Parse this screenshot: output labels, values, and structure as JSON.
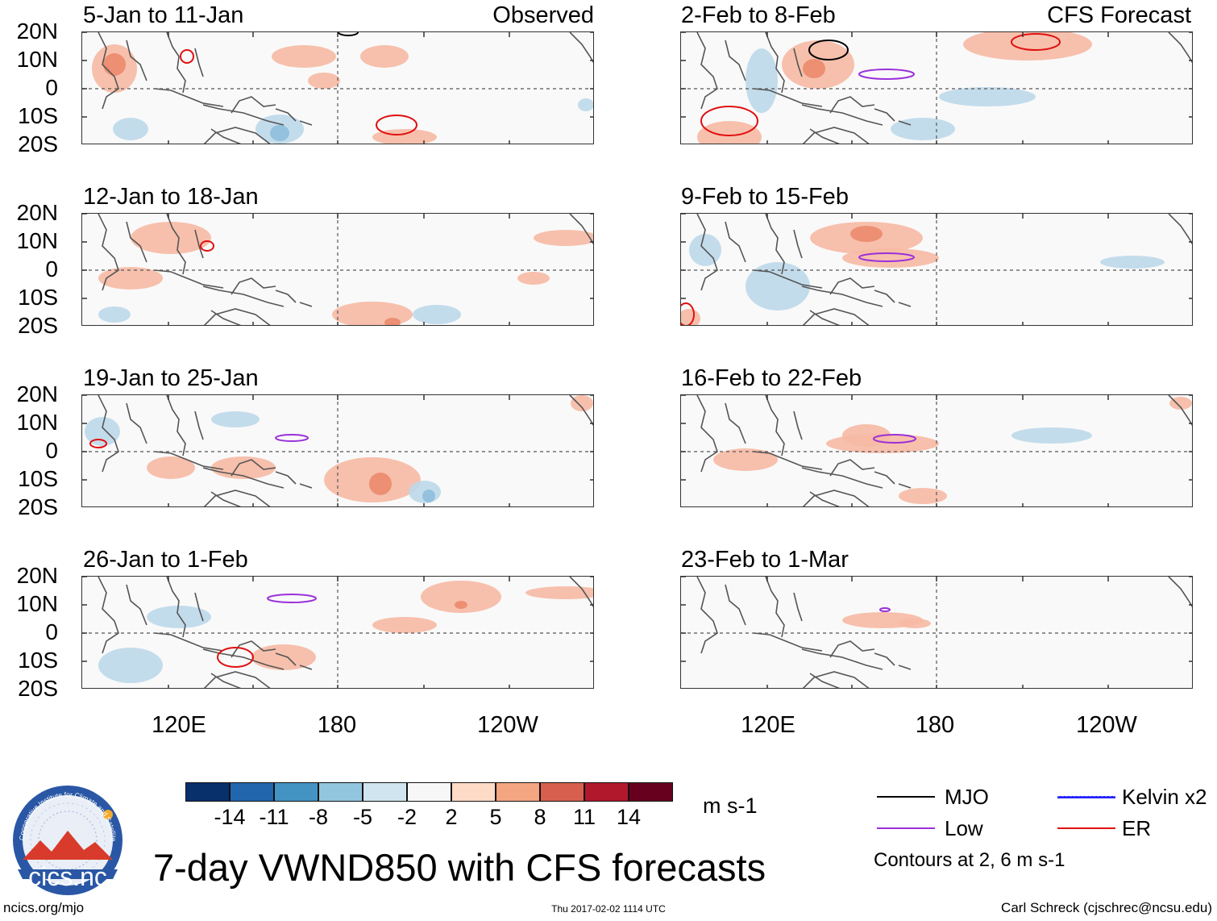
{
  "panels": [
    {
      "title": "5-Jan to 11-Jan",
      "tag": "Observed"
    },
    {
      "title": "12-Jan to 18-Jan",
      "tag": ""
    },
    {
      "title": "19-Jan to 25-Jan",
      "tag": ""
    },
    {
      "title": "26-Jan to 1-Feb",
      "tag": ""
    },
    {
      "title": "2-Feb to 8-Feb",
      "tag": "CFS Forecast"
    },
    {
      "title": "9-Feb to 15-Feb",
      "tag": ""
    },
    {
      "title": "16-Feb to 22-Feb",
      "tag": ""
    },
    {
      "title": "23-Feb to 1-Mar",
      "tag": ""
    }
  ],
  "yaxis": [
    "20N",
    "10N",
    "0",
    "10S",
    "20S"
  ],
  "xaxis": [
    "120E",
    "180",
    "120W"
  ],
  "colorbar": {
    "colors": [
      "#08306b",
      "#2166ac",
      "#4393c3",
      "#92c5de",
      "#d1e5f0",
      "#f7f7f7",
      "#fddbc7",
      "#f4a582",
      "#d6604d",
      "#b2182b",
      "#67001f"
    ],
    "labels": [
      "-14",
      "-11",
      "-8",
      "-5",
      "-2",
      "2",
      "5",
      "8",
      "11",
      "14"
    ],
    "units": "m s-1"
  },
  "legend": {
    "mjo": "MJO",
    "low": "Low",
    "kelvin": "Kelvin x2",
    "er": "ER",
    "mjo_color": "#000000",
    "low_color": "#9b30d9",
    "kelvin_color": "#2222ff",
    "er_color": "#e01010",
    "note": "Contours at 2, 6 m s-1"
  },
  "main_title": "7-day VWND850 with CFS forecasts",
  "logo_text": "cics.nc",
  "logo_ring": "Cooperative Institute for Climate and Satellites",
  "footer": {
    "left": "ncics.org/mjo",
    "center": "Thu 2017-02-02 1114 UTC",
    "right": "Carl Schreck (cjschrec@ncsu.edu)"
  }
}
